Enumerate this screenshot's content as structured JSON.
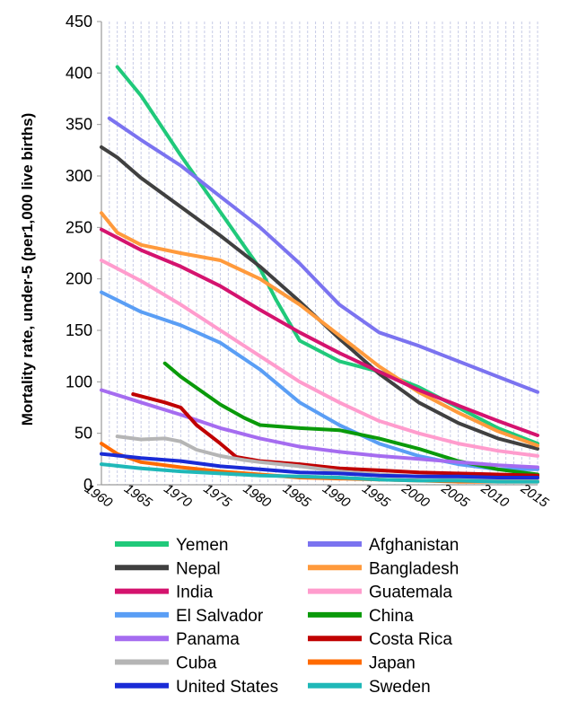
{
  "chart_data": {
    "type": "line",
    "title": "",
    "xlabel": "",
    "ylabel": "Mortality rate, under-5 (per1,000 live births)",
    "xlim": [
      1960,
      2015
    ],
    "ylim": [
      0,
      450
    ],
    "x_ticks": [
      "1960",
      "1965",
      "1970",
      "1975",
      "1980",
      "1985",
      "1990",
      "1995",
      "2000",
      "2005",
      "2010",
      "2015"
    ],
    "y_ticks": [
      "0",
      "50",
      "100",
      "150",
      "200",
      "250",
      "300",
      "350",
      "400",
      "450"
    ],
    "grid": "vertical",
    "legend_position": "bottom",
    "series": [
      {
        "name": "Yemen",
        "color": "#20c97a",
        "x": [
          1962,
          1965,
          1970,
          1975,
          1980,
          1982,
          1985,
          1990,
          1995,
          2000,
          2005,
          2010,
          2015
        ],
        "y": [
          406,
          378,
          320,
          265,
          210,
          180,
          140,
          120,
          110,
          95,
          75,
          55,
          40
        ]
      },
      {
        "name": "Afghanistan",
        "color": "#7b73f0",
        "x": [
          1961,
          1965,
          1970,
          1975,
          1980,
          1985,
          1990,
          1995,
          2000,
          2005,
          2010,
          2015
        ],
        "y": [
          356,
          335,
          310,
          280,
          250,
          215,
          175,
          148,
          135,
          120,
          105,
          90
        ]
      },
      {
        "name": "Nepal",
        "color": "#404040",
        "x": [
          1960,
          1962,
          1965,
          1970,
          1975,
          1980,
          1985,
          1990,
          1995,
          2000,
          2005,
          2010,
          2015
        ],
        "y": [
          328,
          318,
          298,
          270,
          242,
          212,
          178,
          142,
          108,
          80,
          60,
          45,
          35
        ]
      },
      {
        "name": "Bangladesh",
        "color": "#ff9a3c",
        "x": [
          1960,
          1962,
          1965,
          1970,
          1975,
          1980,
          1985,
          1990,
          1995,
          2000,
          2005,
          2010,
          2015
        ],
        "y": [
          264,
          245,
          233,
          225,
          218,
          200,
          175,
          145,
          115,
          90,
          70,
          52,
          38
        ]
      },
      {
        "name": "India",
        "color": "#d4136e",
        "x": [
          1960,
          1965,
          1970,
          1975,
          1980,
          1985,
          1990,
          1995,
          2000,
          2005,
          2010,
          2015
        ],
        "y": [
          248,
          228,
          212,
          193,
          170,
          148,
          128,
          110,
          92,
          77,
          62,
          48
        ]
      },
      {
        "name": "Guatemala",
        "color": "#ff9ccd",
        "x": [
          1960,
          1965,
          1970,
          1975,
          1980,
          1985,
          1990,
          1995,
          2000,
          2005,
          2010,
          2015
        ],
        "y": [
          218,
          198,
          175,
          150,
          125,
          100,
          80,
          62,
          50,
          40,
          33,
          28
        ]
      },
      {
        "name": "El Salvador",
        "color": "#5a9ef5",
        "x": [
          1960,
          1965,
          1970,
          1975,
          1980,
          1985,
          1990,
          1995,
          2000,
          2005,
          2010,
          2015
        ],
        "y": [
          187,
          168,
          155,
          138,
          112,
          80,
          58,
          40,
          28,
          20,
          15,
          15
        ]
      },
      {
        "name": "China",
        "color": "#0a9a0a",
        "x": [
          1968,
          1970,
          1975,
          1978,
          1980,
          1985,
          1990,
          1995,
          2000,
          2005,
          2010,
          2015
        ],
        "y": [
          118,
          105,
          78,
          65,
          58,
          55,
          53,
          45,
          35,
          23,
          15,
          10
        ]
      },
      {
        "name": "Panama",
        "color": "#a56cf0",
        "x": [
          1960,
          1965,
          1970,
          1975,
          1980,
          1985,
          1990,
          1995,
          2000,
          2005,
          2010,
          2015
        ],
        "y": [
          92,
          80,
          68,
          55,
          45,
          37,
          32,
          28,
          25,
          22,
          19,
          17
        ]
      },
      {
        "name": "Costa Rica",
        "color": "#c00000",
        "x": [
          1964,
          1966,
          1968,
          1970,
          1972,
          1975,
          1977,
          1980,
          1985,
          1990,
          1995,
          2000,
          2005,
          2010,
          2015
        ],
        "y": [
          88,
          84,
          80,
          75,
          58,
          40,
          27,
          23,
          20,
          16,
          14,
          12,
          11,
          10,
          9
        ]
      },
      {
        "name": "Cuba",
        "color": "#b5b5b5",
        "x": [
          1962,
          1965,
          1968,
          1970,
          1972,
          1975,
          1978,
          1980,
          1985,
          1990,
          1995,
          2000,
          2005,
          2010,
          2015
        ],
        "y": [
          47,
          44,
          45,
          42,
          34,
          28,
          24,
          22,
          18,
          13,
          10,
          8,
          7,
          6,
          6
        ]
      },
      {
        "name": "Japan",
        "color": "#ff6a00",
        "x": [
          1960,
          1962,
          1965,
          1970,
          1975,
          1980,
          1985,
          1990,
          1995,
          2000,
          2005,
          2010,
          2015
        ],
        "y": [
          40,
          30,
          22,
          17,
          13,
          10,
          7,
          6,
          5,
          4,
          3,
          3,
          3
        ]
      },
      {
        "name": "United States",
        "color": "#1a2bd6",
        "x": [
          1960,
          1965,
          1970,
          1975,
          1980,
          1985,
          1990,
          1995,
          2000,
          2005,
          2010,
          2015
        ],
        "y": [
          30,
          26,
          23,
          18,
          15,
          12,
          11,
          9,
          8,
          8,
          7,
          7
        ]
      },
      {
        "name": "Sweden",
        "color": "#1fb8b8",
        "x": [
          1960,
          1965,
          1970,
          1975,
          1980,
          1985,
          1990,
          1995,
          2000,
          2005,
          2010,
          2015
        ],
        "y": [
          20,
          16,
          13,
          11,
          9,
          8,
          7,
          5,
          4,
          4,
          3,
          3
        ]
      }
    ]
  }
}
